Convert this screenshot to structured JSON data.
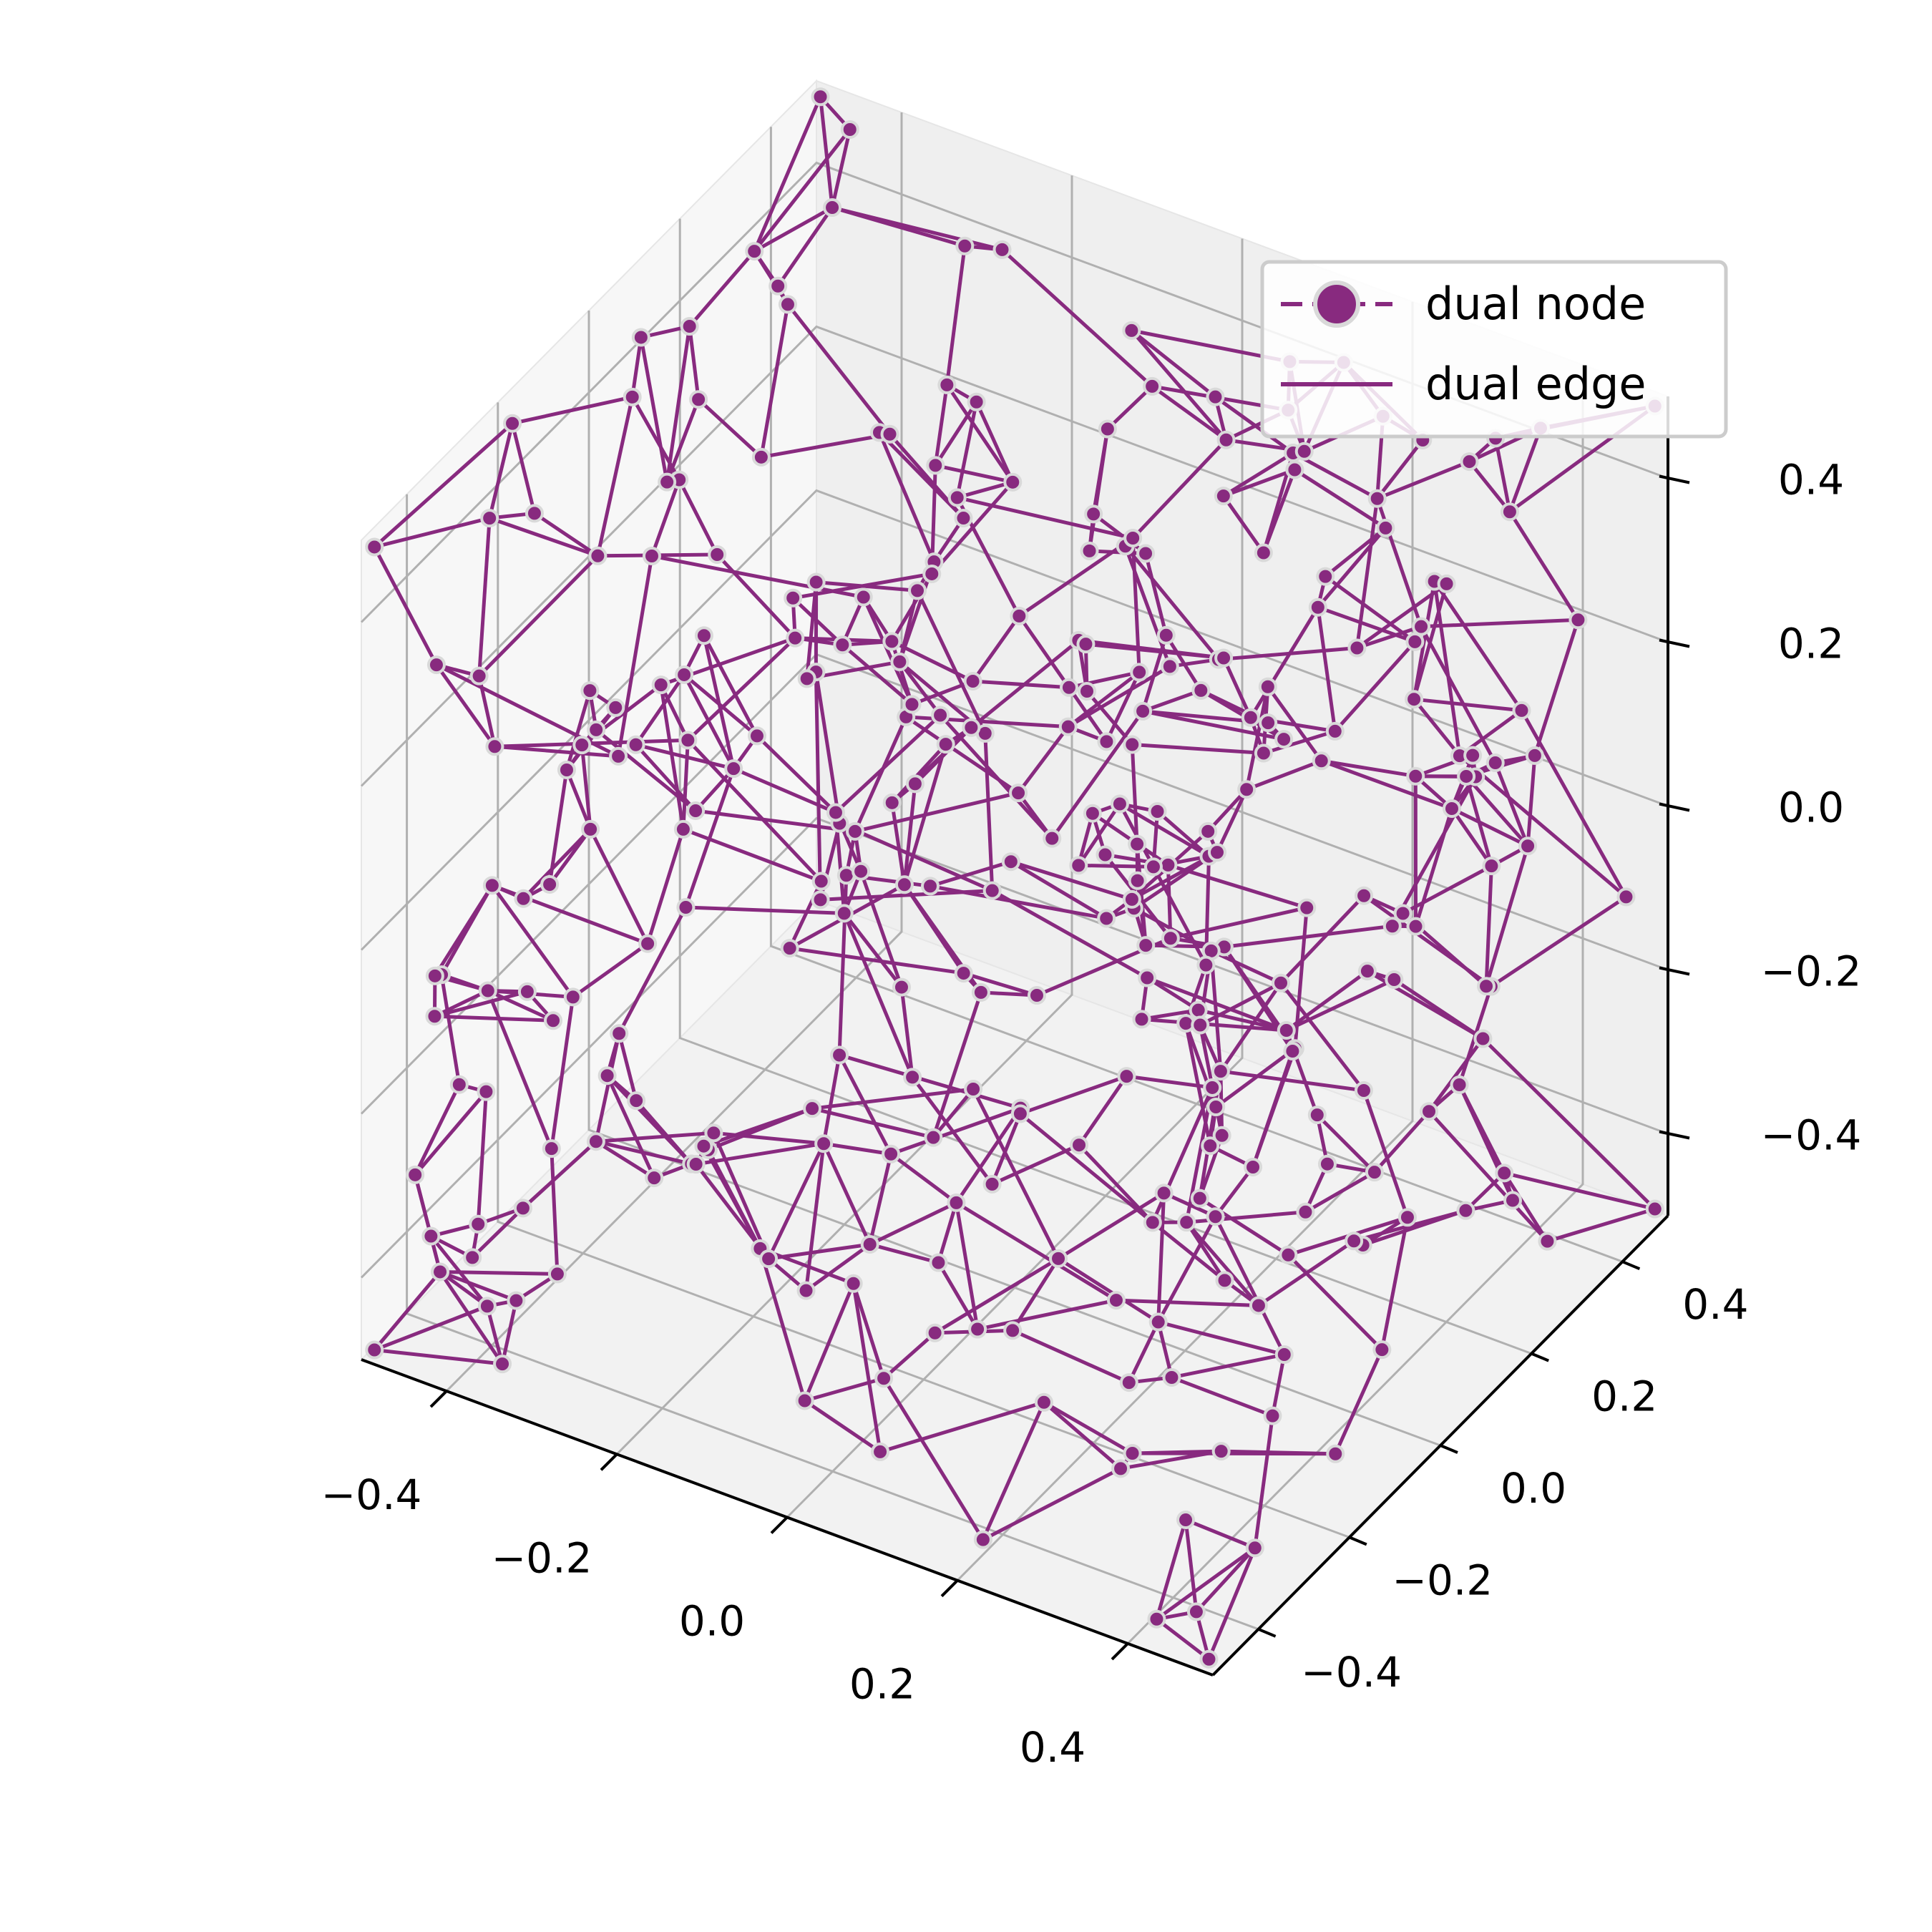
{
  "chart_data": {
    "type": "scatter",
    "title": "",
    "xlabel": "",
    "ylabel": "",
    "zlabel": "",
    "xlim": [
      -0.5,
      0.5
    ],
    "ylim": [
      -0.5,
      0.5
    ],
    "zlim": [
      -0.5,
      0.5
    ],
    "x_ticks": [
      "−0.4",
      "−0.2",
      "0.0",
      "0.2",
      "0.4"
    ],
    "y_ticks": [
      "−0.4",
      "−0.2",
      "0.0",
      "0.2",
      "0.4"
    ],
    "z_ticks": [
      "−0.4",
      "−0.2",
      "0.0",
      "0.2",
      "0.4"
    ],
    "grid": true,
    "legend_position": "top-right",
    "series": [
      {
        "name": "dual node",
        "kind": "marker",
        "color": "#882a7f"
      },
      {
        "name": "dual edge",
        "kind": "line",
        "color": "#882a7f"
      }
    ],
    "marker_edge_color": "#d9d9d9",
    "random_interior_points": 300,
    "random_seed": 7
  }
}
